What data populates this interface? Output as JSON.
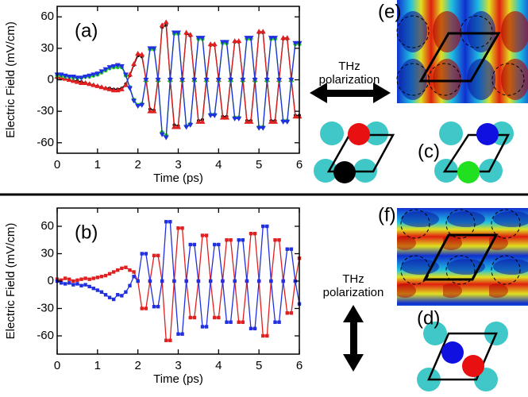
{
  "chart_data": [
    {
      "type": "line",
      "panel_label": "(a)",
      "x_label": "Time (ps)",
      "y_label": "Electric Field (mV/cm)",
      "x": [
        0,
        0.1,
        0.2,
        0.3,
        0.4,
        0.5,
        0.6,
        0.7,
        0.8,
        0.9,
        1,
        1.1,
        1.2,
        1.3,
        1.4,
        1.5,
        1.6,
        1.7,
        1.8,
        1.9,
        2,
        2.1,
        2.2,
        2.3,
        2.4,
        2.5,
        2.6,
        2.7,
        2.8,
        2.9,
        3,
        3.1,
        3.2,
        3.3,
        3.4,
        3.5,
        3.6,
        3.7,
        3.8,
        3.9,
        4,
        4.1,
        4.2,
        4.3,
        4.4,
        4.5,
        4.6,
        4.7,
        4.8,
        4.9,
        5,
        5.1,
        5.2,
        5.3,
        5.4,
        5.5,
        5.6,
        5.7,
        5.8,
        5.9,
        6
      ],
      "xlim": [
        0,
        6
      ],
      "xticks": [
        0,
        1,
        2,
        3,
        4,
        5,
        6
      ],
      "ylim": [
        -70,
        70
      ],
      "yticks": [
        -60,
        -30,
        0,
        30,
        60
      ],
      "series": [
        {
          "color": "#000000",
          "marker": "dot",
          "values": [
            2,
            1,
            1,
            0,
            -1,
            -1,
            -2,
            -3,
            -4,
            -5,
            -6,
            -7,
            -8,
            -8,
            -9,
            -9,
            -8,
            -4,
            4,
            14,
            23,
            22,
            1,
            -28,
            -29,
            1,
            50,
            52,
            1,
            -43,
            -44,
            1,
            44,
            42,
            1,
            -39,
            -38,
            1,
            33,
            33,
            1,
            -35,
            -35,
            1,
            36,
            36,
            1,
            -39,
            -39,
            1,
            45,
            45,
            1,
            -39,
            -39,
            1,
            39,
            39,
            1,
            -34,
            -34
          ]
        },
        {
          "color": "#e02020",
          "marker": "up",
          "values": [
            3,
            2,
            1,
            0,
            -1,
            -2,
            -3,
            -3,
            -4,
            -5,
            -6,
            -7,
            -8,
            -9,
            -10,
            -10,
            -9,
            -5,
            5,
            15,
            25,
            24,
            0,
            -30,
            -30,
            0,
            52,
            55,
            0,
            -45,
            -45,
            0,
            45,
            43,
            0,
            -40,
            -40,
            0,
            34,
            34,
            0,
            -36,
            -36,
            0,
            37,
            37,
            0,
            -40,
            -40,
            0,
            46,
            46,
            0,
            -40,
            -40,
            0,
            40,
            40,
            0,
            -35,
            -35
          ]
        },
        {
          "color": "#22cc22",
          "marker": "circle",
          "values": [
            4,
            4,
            3,
            3,
            2,
            2,
            2,
            3,
            3,
            4,
            5,
            7,
            9,
            11,
            12,
            12,
            12,
            4,
            -7,
            -19,
            -24,
            -23,
            -1,
            29,
            29,
            -1,
            -50,
            -53,
            -1,
            44,
            44,
            -1,
            -44,
            -42,
            -1,
            39,
            39,
            -1,
            -33,
            -33,
            -1,
            35,
            35,
            -1,
            -36,
            -36,
            -1,
            39,
            39,
            -1,
            -45,
            -45,
            -1,
            39,
            39,
            -1,
            -39,
            -39,
            -1,
            34,
            34
          ]
        },
        {
          "color": "#2030e0",
          "marker": "down",
          "values": [
            5,
            5,
            4,
            3,
            3,
            2,
            2,
            3,
            4,
            5,
            6,
            8,
            10,
            12,
            13,
            14,
            13,
            5,
            -8,
            -20,
            -25,
            -24,
            0,
            30,
            30,
            0,
            -52,
            -55,
            0,
            45,
            45,
            0,
            -45,
            -43,
            0,
            40,
            40,
            0,
            -34,
            -34,
            0,
            36,
            36,
            0,
            -37,
            -37,
            0,
            40,
            40,
            0,
            -46,
            -46,
            0,
            40,
            40,
            0,
            -40,
            -40,
            0,
            35,
            35
          ]
        }
      ]
    },
    {
      "type": "line",
      "panel_label": "(b)",
      "x_label": "Time (ps)",
      "y_label": "Electric Field (mV/cm)",
      "x": [
        0,
        0.1,
        0.2,
        0.3,
        0.4,
        0.5,
        0.6,
        0.7,
        0.8,
        0.9,
        1,
        1.1,
        1.2,
        1.3,
        1.4,
        1.5,
        1.6,
        1.7,
        1.8,
        1.9,
        2,
        2.1,
        2.2,
        2.3,
        2.4,
        2.5,
        2.6,
        2.7,
        2.8,
        2.9,
        3,
        3.1,
        3.2,
        3.3,
        3.4,
        3.5,
        3.6,
        3.7,
        3.8,
        3.9,
        4,
        4.1,
        4.2,
        4.3,
        4.4,
        4.5,
        4.6,
        4.7,
        4.8,
        4.9,
        5,
        5.1,
        5.2,
        5.3,
        5.4,
        5.5,
        5.6,
        5.7,
        5.8,
        5.9,
        6
      ],
      "xlim": [
        0,
        6
      ],
      "xticks": [
        0,
        1,
        2,
        3,
        4,
        5,
        6
      ],
      "ylim": [
        -80,
        80
      ],
      "yticks": [
        -60,
        -30,
        0,
        30,
        60
      ],
      "series": [
        {
          "color": "#e02020",
          "marker": "square",
          "values": [
            2,
            1,
            3,
            2,
            0,
            1,
            2,
            3,
            2,
            3,
            4,
            5,
            6,
            8,
            10,
            12,
            14,
            15,
            12,
            10,
            0,
            -30,
            -30,
            0,
            28,
            28,
            0,
            -65,
            -65,
            0,
            58,
            58,
            0,
            -40,
            -40,
            0,
            50,
            50,
            0,
            -40,
            -40,
            0,
            45,
            45,
            0,
            -45,
            -45,
            0,
            52,
            52,
            0,
            -60,
            -60,
            0,
            45,
            45,
            0,
            -35,
            -35,
            0,
            25
          ]
        },
        {
          "color": "#2030e0",
          "marker": "square",
          "values": [
            0,
            -2,
            -3,
            -2,
            -4,
            -3,
            -5,
            -4,
            -6,
            -8,
            -10,
            -12,
            -15,
            -18,
            -20,
            -15,
            -16,
            -12,
            -5,
            5,
            0,
            30,
            30,
            0,
            -28,
            -28,
            0,
            65,
            65,
            0,
            -58,
            -58,
            0,
            40,
            40,
            0,
            -50,
            -50,
            0,
            40,
            40,
            0,
            -45,
            -45,
            0,
            45,
            45,
            0,
            -52,
            -52,
            0,
            60,
            60,
            0,
            -45,
            -45,
            0,
            35,
            35,
            0,
            -25
          ]
        }
      ]
    }
  ],
  "figure": {
    "panel_labels": [
      "(e)",
      "(c)",
      "(f)",
      "(d)"
    ],
    "annotations": [
      [
        "THz",
        "polarization"
      ],
      [
        "THz",
        "polarization"
      ]
    ]
  }
}
